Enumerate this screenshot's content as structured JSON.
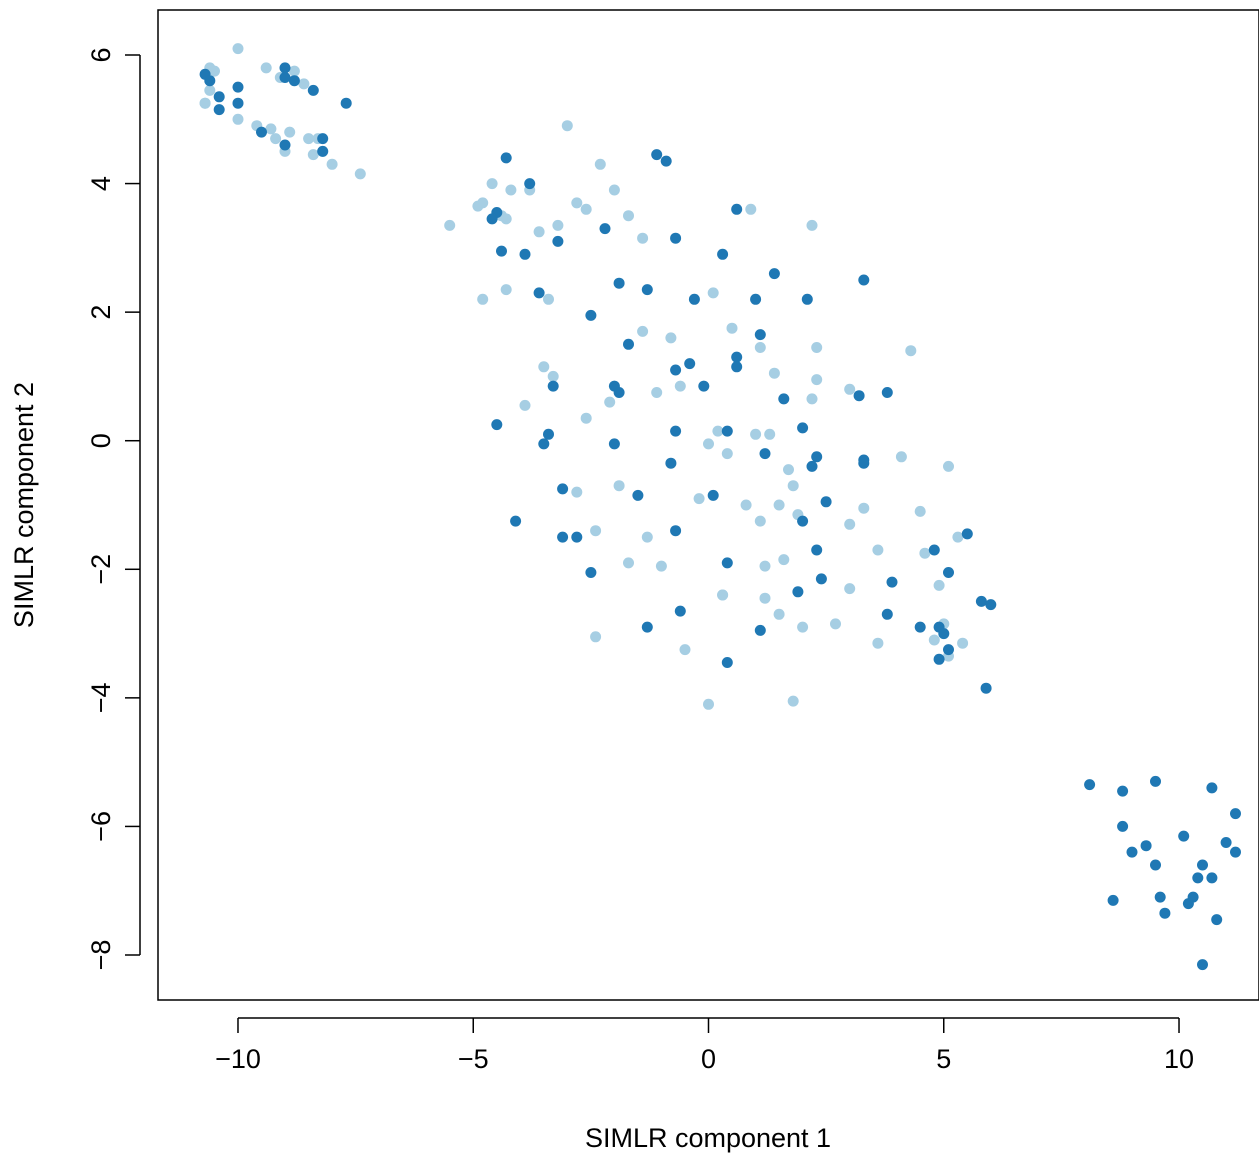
{
  "chart_data": {
    "type": "scatter",
    "title": "",
    "xlabel": "SIMLR component 1",
    "ylabel": "SIMLR component 2",
    "xlim": [
      -11.7,
      11.7
    ],
    "ylim": [
      -8.7,
      6.7
    ],
    "xticks": [
      -10,
      -5,
      0,
      5,
      10
    ],
    "xtick_labels": [
      "−10",
      "−5",
      "0",
      "5",
      "10"
    ],
    "yticks": [
      -8,
      -6,
      -4,
      -2,
      0,
      2,
      4,
      6
    ],
    "ytick_labels": [
      "−8",
      "−6",
      "−4",
      "−2",
      "0",
      "2",
      "4",
      "6"
    ],
    "grid": false,
    "legend": "none",
    "series": [
      {
        "color": "#a6cee3",
        "x": [
          -10.0,
          -10.7,
          -10.6,
          -10.5,
          -9.4,
          -9.1,
          -8.8,
          -8.6,
          -10.6,
          -10.7,
          -10.0,
          -9.6,
          -9.3,
          -8.9,
          -8.5,
          -8.2,
          -8.0,
          -9.0,
          -8.4,
          -7.4,
          -9.2,
          -8.3,
          -3.0,
          -2.3,
          -2.0,
          -1.7,
          0.9,
          2.2,
          -4.6,
          -4.2,
          -3.8,
          -4.8,
          -3.2,
          -2.8,
          -4.9,
          -5.5,
          -4.4,
          -4.3,
          -3.6,
          -2.6,
          -1.4,
          -0.8,
          0.1,
          0.5,
          1.1,
          -4.8,
          -4.3,
          -3.4,
          -3.5,
          -3.3,
          -2.1,
          -1.4,
          -0.6,
          1.4,
          2.3,
          2.3,
          3.0,
          4.3,
          -3.9,
          -2.6,
          -1.1,
          0.0,
          0.2,
          0.4,
          1.0,
          1.3,
          1.7,
          2.2,
          4.1,
          -2.8,
          -2.4,
          -1.9,
          -1.3,
          -0.2,
          0.3,
          0.8,
          1.1,
          1.5,
          1.8,
          1.9,
          3.0,
          3.3,
          4.5,
          5.1,
          5.3,
          -1.7,
          -1.0,
          1.2,
          1.6,
          2.0,
          2.7,
          3.6,
          4.6,
          4.9,
          -2.4,
          -0.5,
          0.3,
          1.2,
          1.5,
          3.6,
          4.8,
          5.0,
          5.1,
          5.4,
          -0.0,
          1.8,
          3.0
        ],
        "y": [
          6.1,
          5.25,
          5.8,
          5.75,
          5.8,
          5.65,
          5.75,
          5.55,
          5.45,
          5.25,
          5.0,
          4.9,
          4.85,
          4.8,
          4.7,
          4.5,
          4.3,
          4.5,
          4.45,
          4.15,
          4.7,
          4.7,
          4.9,
          4.3,
          3.9,
          3.5,
          3.6,
          3.35,
          4.0,
          3.9,
          3.9,
          3.7,
          3.35,
          3.7,
          3.65,
          3.35,
          3.5,
          3.45,
          3.25,
          3.6,
          3.15,
          1.6,
          2.3,
          1.75,
          1.45,
          2.2,
          2.35,
          2.2,
          1.15,
          1.0,
          0.6,
          1.7,
          0.85,
          1.05,
          1.45,
          0.95,
          0.8,
          1.4,
          0.55,
          0.35,
          0.75,
          -0.05,
          0.15,
          -0.2,
          0.1,
          0.1,
          -0.45,
          0.65,
          -0.25,
          -0.8,
          -1.4,
          -0.7,
          -1.5,
          -0.9,
          -2.4,
          -1.0,
          -1.25,
          -1.0,
          -0.7,
          -1.15,
          -1.3,
          -1.05,
          -1.1,
          -0.4,
          -1.5,
          -1.9,
          -1.95,
          -1.95,
          -1.85,
          -2.9,
          -2.85,
          -1.7,
          -1.75,
          -2.25,
          -3.05,
          -3.25,
          -2.4,
          -2.45,
          -2.7,
          -3.15,
          -3.1,
          -2.85,
          -3.35,
          -3.15,
          -4.1,
          -4.05,
          -2.3
        ]
      },
      {
        "color": "#1f78b4",
        "x": [
          -10.7,
          -10.6,
          -10.4,
          -10.0,
          -10.0,
          -10.4,
          -9.0,
          -9.0,
          -8.8,
          -8.4,
          -9.5,
          -9.0,
          -8.2,
          -8.2,
          -7.7,
          -1.1,
          -0.9,
          -4.3,
          -3.8,
          -4.5,
          0.6,
          -4.6,
          -3.2,
          -2.2,
          0.3,
          -0.7,
          -4.4,
          -3.9,
          -2.5,
          -1.9,
          -1.3,
          -0.3,
          1.0,
          2.1,
          1.4,
          3.3,
          -3.6,
          -1.7,
          1.1,
          0.6,
          -0.7,
          -0.4,
          0.6,
          -0.1,
          -3.3,
          -2.0,
          -1.9,
          1.6,
          3.2,
          3.8,
          -4.5,
          -3.4,
          -3.5,
          -2.0,
          -0.7,
          0.4,
          2.0,
          3.3,
          3.3,
          1.2,
          2.3,
          -0.8,
          2.2,
          -3.1,
          -1.5,
          0.1,
          2.5,
          -4.1,
          -3.1,
          -2.8,
          -0.7,
          2.0,
          5.5,
          4.8,
          2.3,
          0.4,
          5.1,
          1.9,
          3.9,
          2.4,
          -2.5,
          -0.6,
          3.8,
          5.8,
          6.0,
          -1.3,
          1.1,
          4.5,
          4.9,
          5.0,
          5.1,
          0.4,
          4.9,
          5.9,
          8.1,
          8.8,
          9.5,
          10.7,
          11.2,
          8.8,
          10.1,
          9.3,
          11.0,
          9.0,
          11.2,
          9.5,
          10.5,
          10.4,
          10.7,
          9.6,
          10.3,
          8.6,
          9.7,
          10.8,
          10.2,
          10.5
        ],
        "y": [
          5.7,
          5.6,
          5.35,
          5.5,
          5.25,
          5.15,
          5.8,
          5.65,
          5.6,
          5.45,
          4.8,
          4.6,
          4.7,
          4.5,
          5.25,
          4.45,
          4.35,
          4.4,
          4.0,
          3.55,
          3.6,
          3.45,
          3.1,
          3.3,
          2.9,
          3.15,
          2.95,
          2.9,
          1.95,
          2.45,
          2.35,
          2.2,
          2.2,
          2.2,
          2.6,
          2.5,
          2.3,
          1.5,
          1.65,
          1.3,
          1.1,
          1.2,
          1.15,
          0.85,
          0.85,
          0.85,
          0.75,
          0.65,
          0.7,
          0.75,
          0.25,
          0.1,
          -0.05,
          -0.05,
          0.15,
          0.15,
          0.2,
          -0.3,
          -0.35,
          -0.2,
          -0.25,
          -0.35,
          -0.4,
          -0.75,
          -0.85,
          -0.85,
          -0.95,
          -1.25,
          -1.5,
          -1.5,
          -1.4,
          -1.25,
          -1.45,
          -1.7,
          -1.7,
          -1.9,
          -2.05,
          -2.35,
          -2.2,
          -2.15,
          -2.05,
          -2.65,
          -2.7,
          -2.5,
          -2.55,
          -2.9,
          -2.95,
          -2.9,
          -2.9,
          -3.0,
          -3.25,
          -3.45,
          -3.4,
          -3.85,
          -5.35,
          -5.45,
          -5.3,
          -5.4,
          -5.8,
          -6.0,
          -6.15,
          -6.3,
          -6.25,
          -6.4,
          -6.4,
          -6.6,
          -6.6,
          -6.8,
          -6.8,
          -7.1,
          -7.1,
          -7.15,
          -7.35,
          -7.45,
          -7.2,
          -8.15
        ]
      }
    ]
  }
}
